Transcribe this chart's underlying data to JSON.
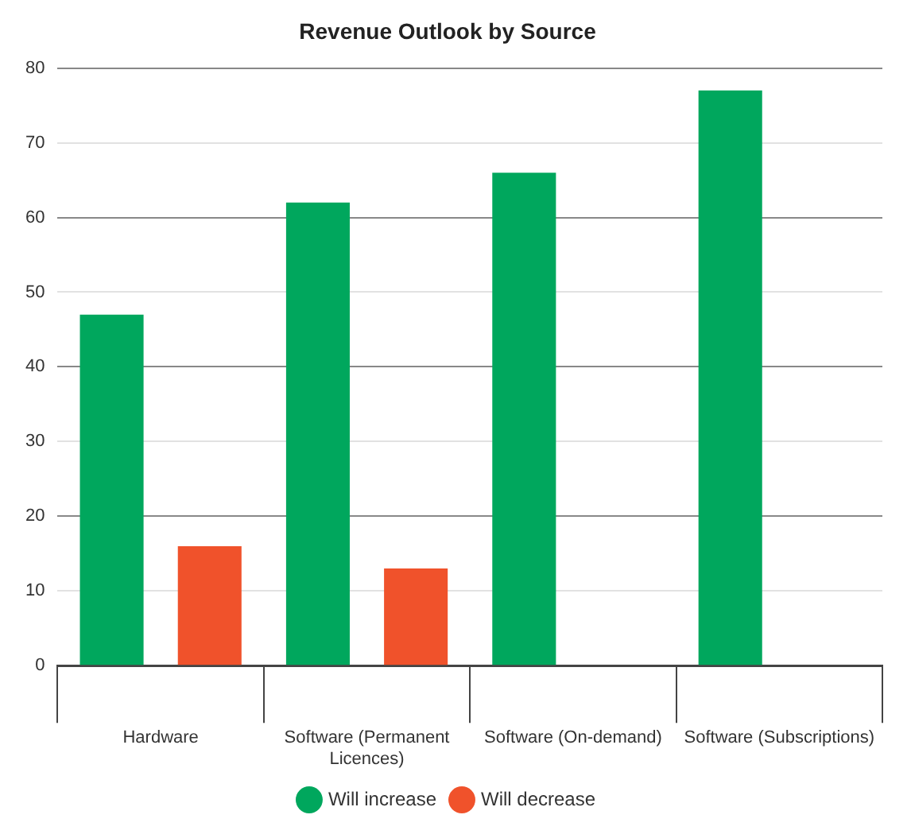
{
  "chart_data": {
    "type": "bar",
    "title": "Revenue Outlook by Source",
    "categories": [
      "Hardware",
      "Software (Permanent Licences)",
      "Software (On-demand)",
      "Software (Subscriptions)"
    ],
    "series": [
      {
        "name": "Will increase",
        "color": "#00a75d",
        "values": [
          47,
          62,
          66,
          77
        ]
      },
      {
        "name": "Will decrease",
        "color": "#f0522b",
        "values": [
          16,
          13,
          null,
          null
        ]
      }
    ],
    "ylim": [
      0,
      80
    ],
    "yticks": [
      0,
      10,
      20,
      30,
      40,
      50,
      60,
      70,
      80
    ],
    "grid": "y",
    "legend": "bottom"
  }
}
